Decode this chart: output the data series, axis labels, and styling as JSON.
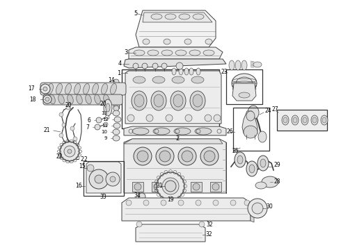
{
  "background_color": "#ffffff",
  "line_color": "#404040",
  "label_color": "#000000",
  "lw": 0.7,
  "figsize": [
    4.9,
    3.6
  ],
  "dpi": 100
}
